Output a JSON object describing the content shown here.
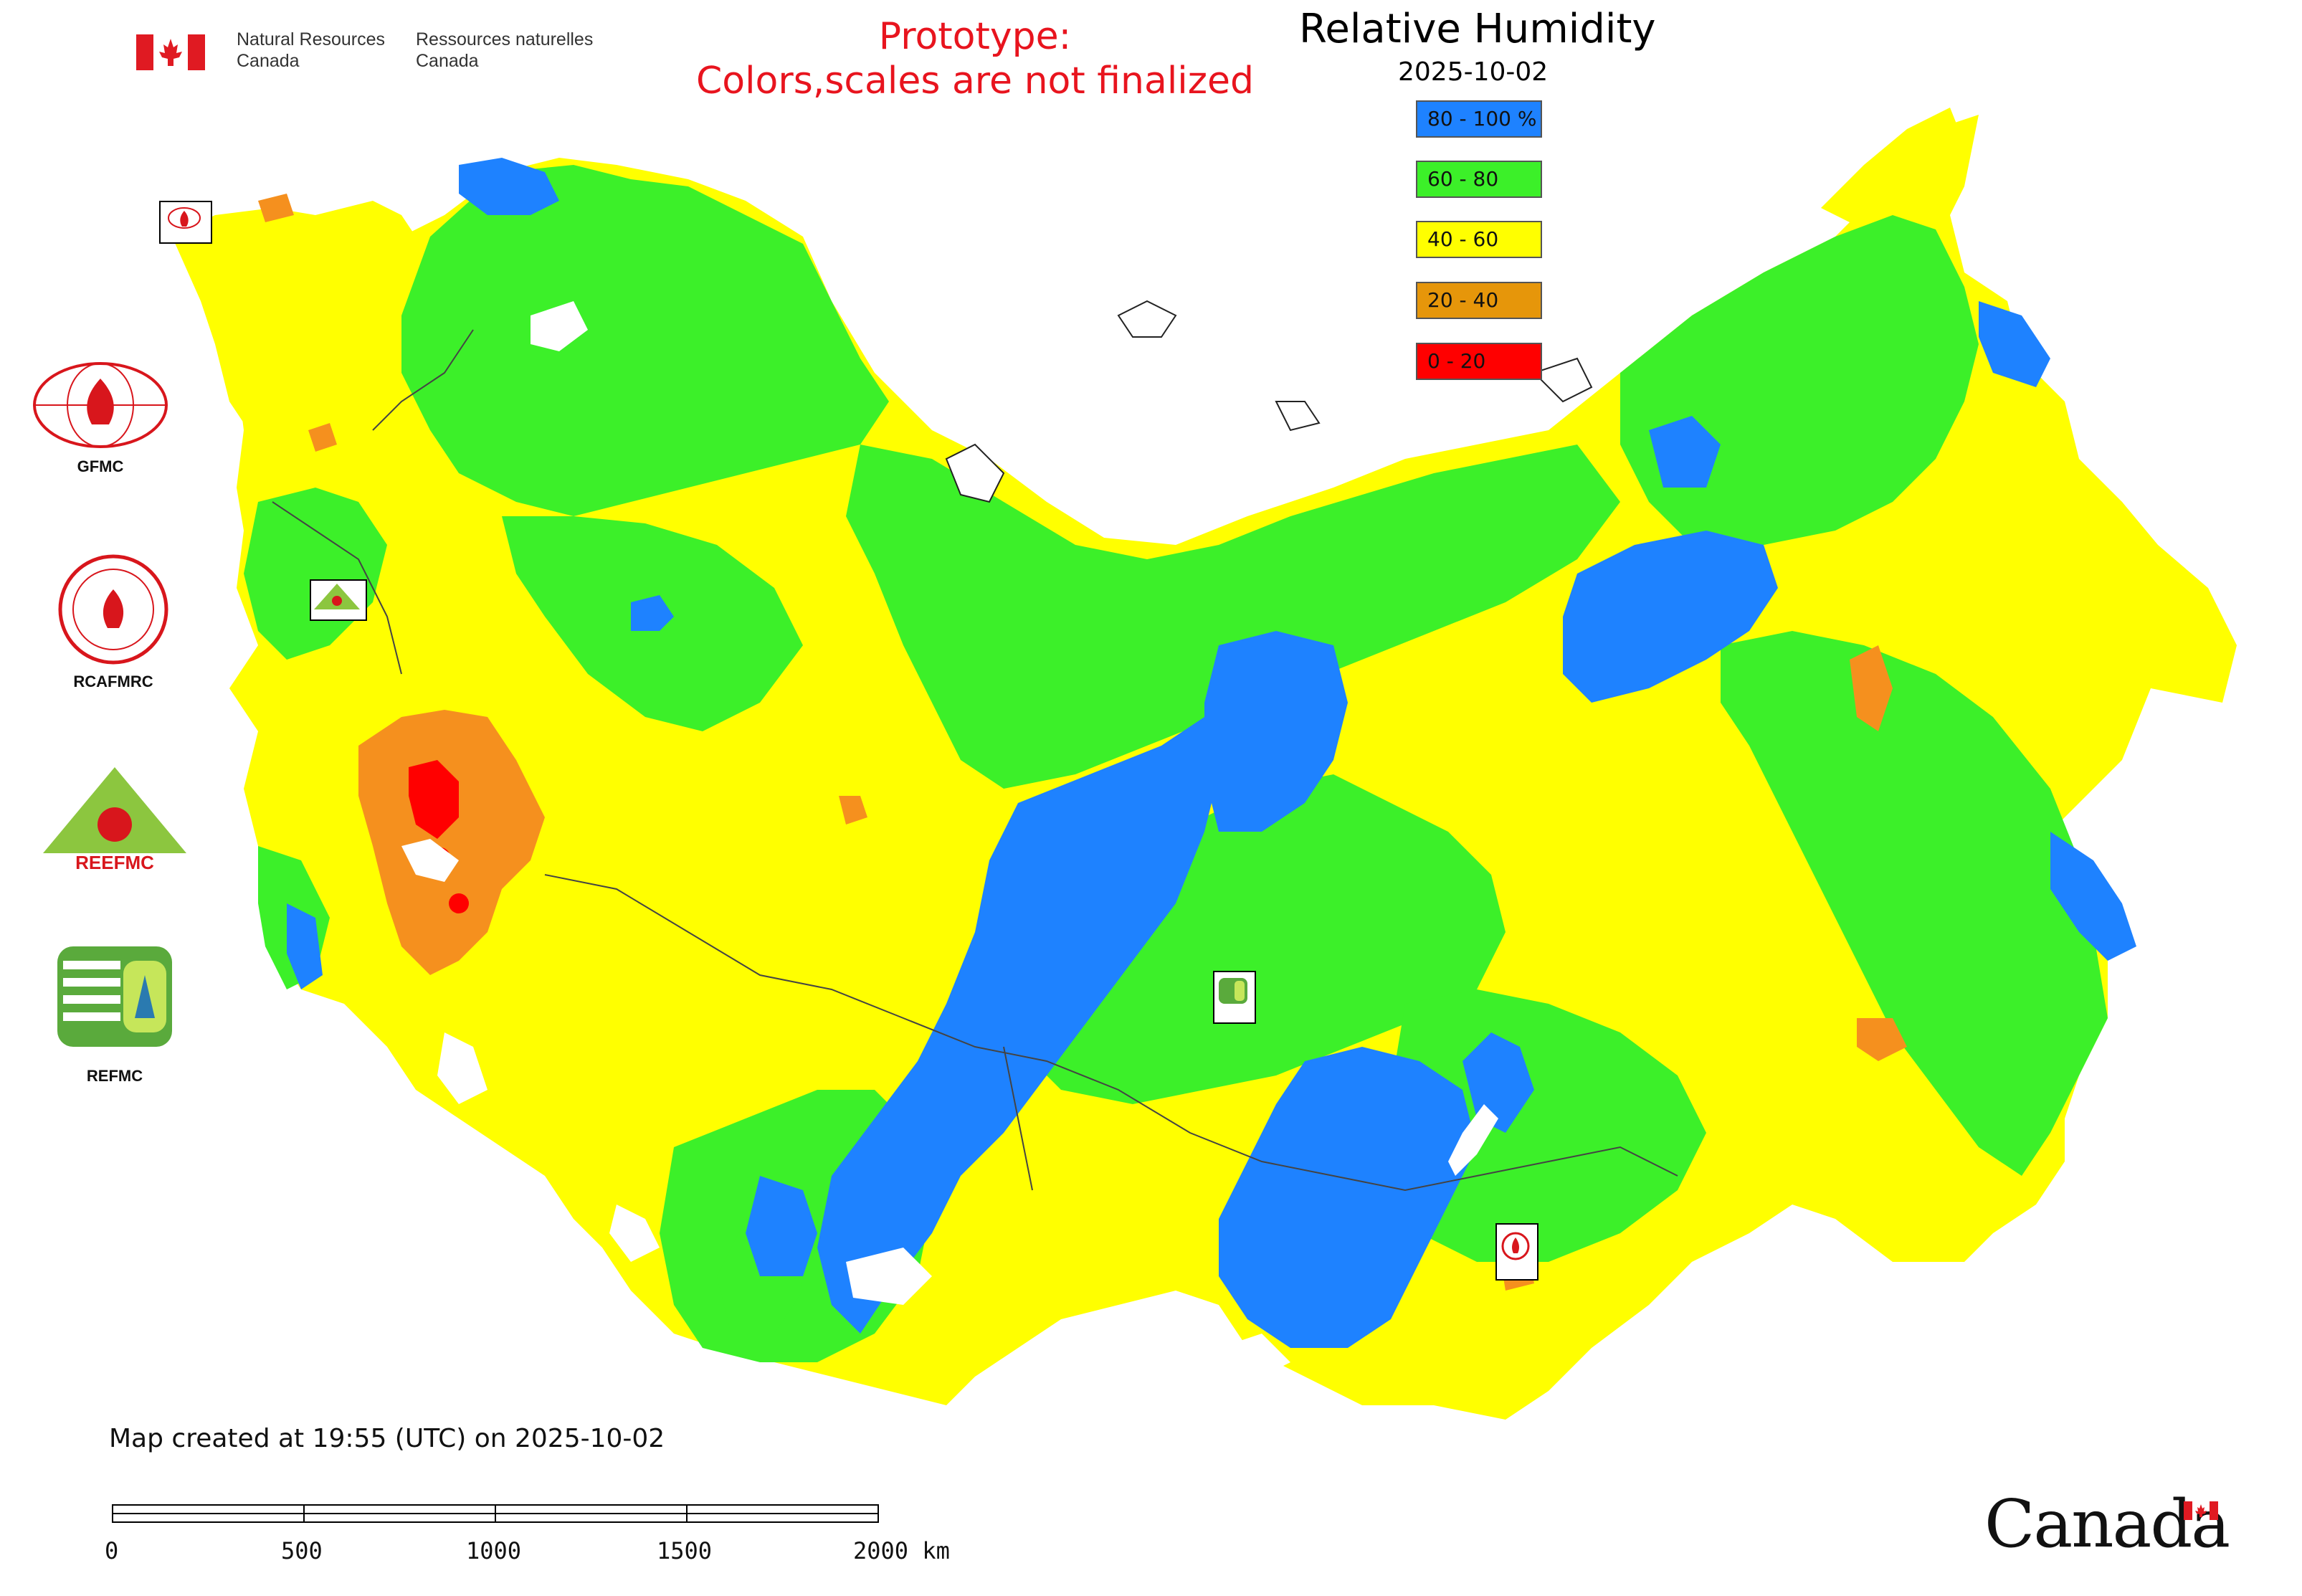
{
  "header": {
    "agency_en_line1": "Natural Resources",
    "agency_en_line2": "Canada",
    "agency_fr_line1": "Ressources naturelles",
    "agency_fr_line2": "Canada",
    "prototype_line1": "Prototype:",
    "prototype_line2": "Colors,scales are not finalized"
  },
  "map": {
    "title": "Relative Humidity",
    "date": "2025-10-02",
    "legend": [
      {
        "label": "80 - 100 %",
        "color": "#1e82ff"
      },
      {
        "label": "60 - 80",
        "color": "#3cf029"
      },
      {
        "label": "40 - 60",
        "color": "#ffff00"
      },
      {
        "label": "20 - 40",
        "color": "#e6960a"
      },
      {
        "label": "0 - 20",
        "color": "#ff0000"
      }
    ],
    "markers": [
      {
        "icon": "gfmc-marker-icon"
      },
      {
        "icon": "reefmc-marker-icon"
      },
      {
        "icon": "refmc-marker-icon"
      },
      {
        "icon": "rcafmrc-marker-icon"
      }
    ]
  },
  "organizations": [
    {
      "label": "GFMC",
      "icon": "gfmc-logo-icon"
    },
    {
      "label": "RCAFMRC",
      "icon": "rcafmrc-logo-icon"
    },
    {
      "label": "",
      "icon": "reefmc-logo-icon"
    },
    {
      "label": "REFMC",
      "icon": "refmc-logo-icon"
    }
  ],
  "footer": {
    "created": "Map created at 19:55 (UTC) on 2025-10-02",
    "scale_labels": [
      "0",
      "500",
      "1000",
      "1500",
      "2000 km"
    ],
    "wordmark": "Canada"
  },
  "colors": {
    "blue": "#1e82ff",
    "green": "#3cf029",
    "yellow": "#ffff00",
    "orange": "#f5901e",
    "red": "#ff0000",
    "prototype_red": "#e8141e",
    "canada_red": "#e01a22"
  }
}
